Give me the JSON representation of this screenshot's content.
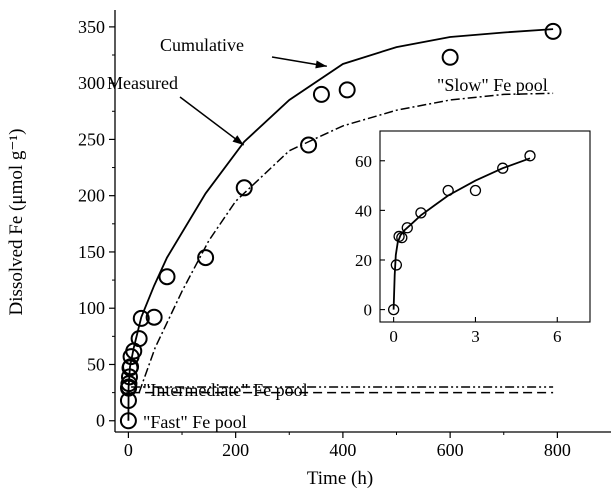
{
  "chart_data": [
    {
      "type": "scatter",
      "role": "main",
      "xlabel": "Time (h)",
      "ylabel": "Dissolved Fe (μmol g⁻¹)",
      "xlim": [
        -25,
        900
      ],
      "ylim": [
        -10,
        365
      ],
      "xticks": [
        0,
        200,
        400,
        600,
        800
      ],
      "yticks": [
        0,
        50,
        100,
        150,
        200,
        250,
        300,
        350
      ],
      "grid": false,
      "series": [
        {
          "name": "Measured",
          "kind": "markers",
          "marker": "open-circle",
          "x": [
            0,
            0.1,
            0.25,
            0.5,
            1,
            2,
            3,
            4,
            5,
            10,
            20,
            24,
            48,
            72,
            144,
            216,
            336,
            360,
            408,
            600,
            792
          ],
          "y": [
            0,
            18,
            29,
            30,
            33,
            39,
            47,
            48,
            57,
            62,
            73,
            91,
            92,
            128,
            145,
            207,
            245,
            290,
            294,
            323,
            346
          ]
        },
        {
          "name": "Cumulative",
          "kind": "solid-line",
          "x": [
            0,
            0.3,
            3,
            10,
            24,
            48,
            72,
            144,
            216,
            300,
            400,
            500,
            600,
            700,
            792
          ],
          "y": [
            0,
            30,
            48,
            65,
            92,
            120,
            145,
            202,
            248,
            285,
            317,
            332,
            341,
            345,
            348
          ]
        },
        {
          "name": "\"Slow\" Fe pool",
          "kind": "dash-dot-line",
          "x": [
            20,
            50,
            100,
            150,
            200,
            300,
            400,
            500,
            600,
            700,
            792
          ],
          "y": [
            25,
            65,
            115,
            160,
            195,
            240,
            262,
            276,
            285,
            290,
            291
          ]
        },
        {
          "name": "\"Intermediate\" Fe pool",
          "kind": "dash-dot-dot-line",
          "x": [
            5,
            792
          ],
          "y": [
            30,
            30
          ]
        },
        {
          "name": "\"Fast\" Fe pool",
          "kind": "dashed-line",
          "x": [
            5,
            792
          ],
          "y": [
            25,
            25
          ]
        }
      ],
      "annotations": [
        {
          "text": "Cumulative",
          "points_to": [
            370,
            315
          ]
        },
        {
          "text": "Measured",
          "points_to": [
            215,
            245
          ]
        },
        {
          "text": "\"Slow\" Fe pool"
        },
        {
          "text": "\"Intermediate\" Fe pool"
        },
        {
          "text": "\"Fast\" Fe pool"
        }
      ]
    },
    {
      "type": "scatter",
      "role": "inset",
      "xlim": [
        -0.5,
        7.2
      ],
      "ylim": [
        -5,
        72
      ],
      "xticks": [
        0,
        3,
        6
      ],
      "yticks": [
        0,
        20,
        40,
        60
      ],
      "grid": false,
      "series": [
        {
          "name": "Measured",
          "kind": "markers",
          "marker": "open-circle",
          "x": [
            0,
            0.1,
            0.2,
            0.3,
            0.5,
            1,
            2,
            3,
            4,
            5
          ],
          "y": [
            0,
            18,
            29.5,
            29,
            33,
            39,
            48,
            48,
            57,
            62
          ]
        },
        {
          "name": "Cumulative",
          "kind": "solid-line",
          "x": [
            0,
            0.04,
            0.08,
            0.15,
            0.25,
            0.4,
            0.6,
            1,
            1.5,
            2,
            3,
            4,
            5
          ],
          "y": [
            0,
            14,
            22,
            27,
            30,
            32,
            34,
            38,
            42,
            46,
            52,
            57,
            61
          ]
        }
      ]
    }
  ]
}
